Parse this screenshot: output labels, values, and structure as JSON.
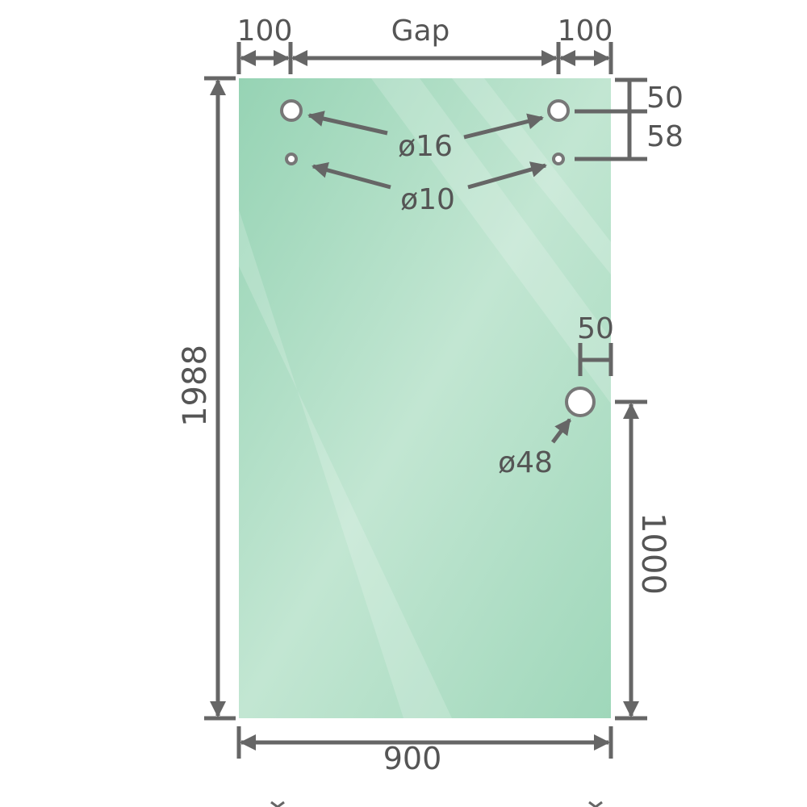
{
  "colors": {
    "glass": "#9ed6b9",
    "glass_light": "#c4e7d3",
    "dimension": "#666666",
    "hole_fill": "#ffffff"
  },
  "dimensions": {
    "left_margin": "100",
    "gap": "Gap",
    "right_margin": "100",
    "height": "1988",
    "width": "900",
    "top_to_hole": "50",
    "hole_spacing": "58",
    "edge_to_handle": "50",
    "handle_height": "1000"
  },
  "holes": {
    "upper_diameter": "ø16",
    "lower_diameter": "ø10",
    "handle_diameter": "ø48"
  }
}
